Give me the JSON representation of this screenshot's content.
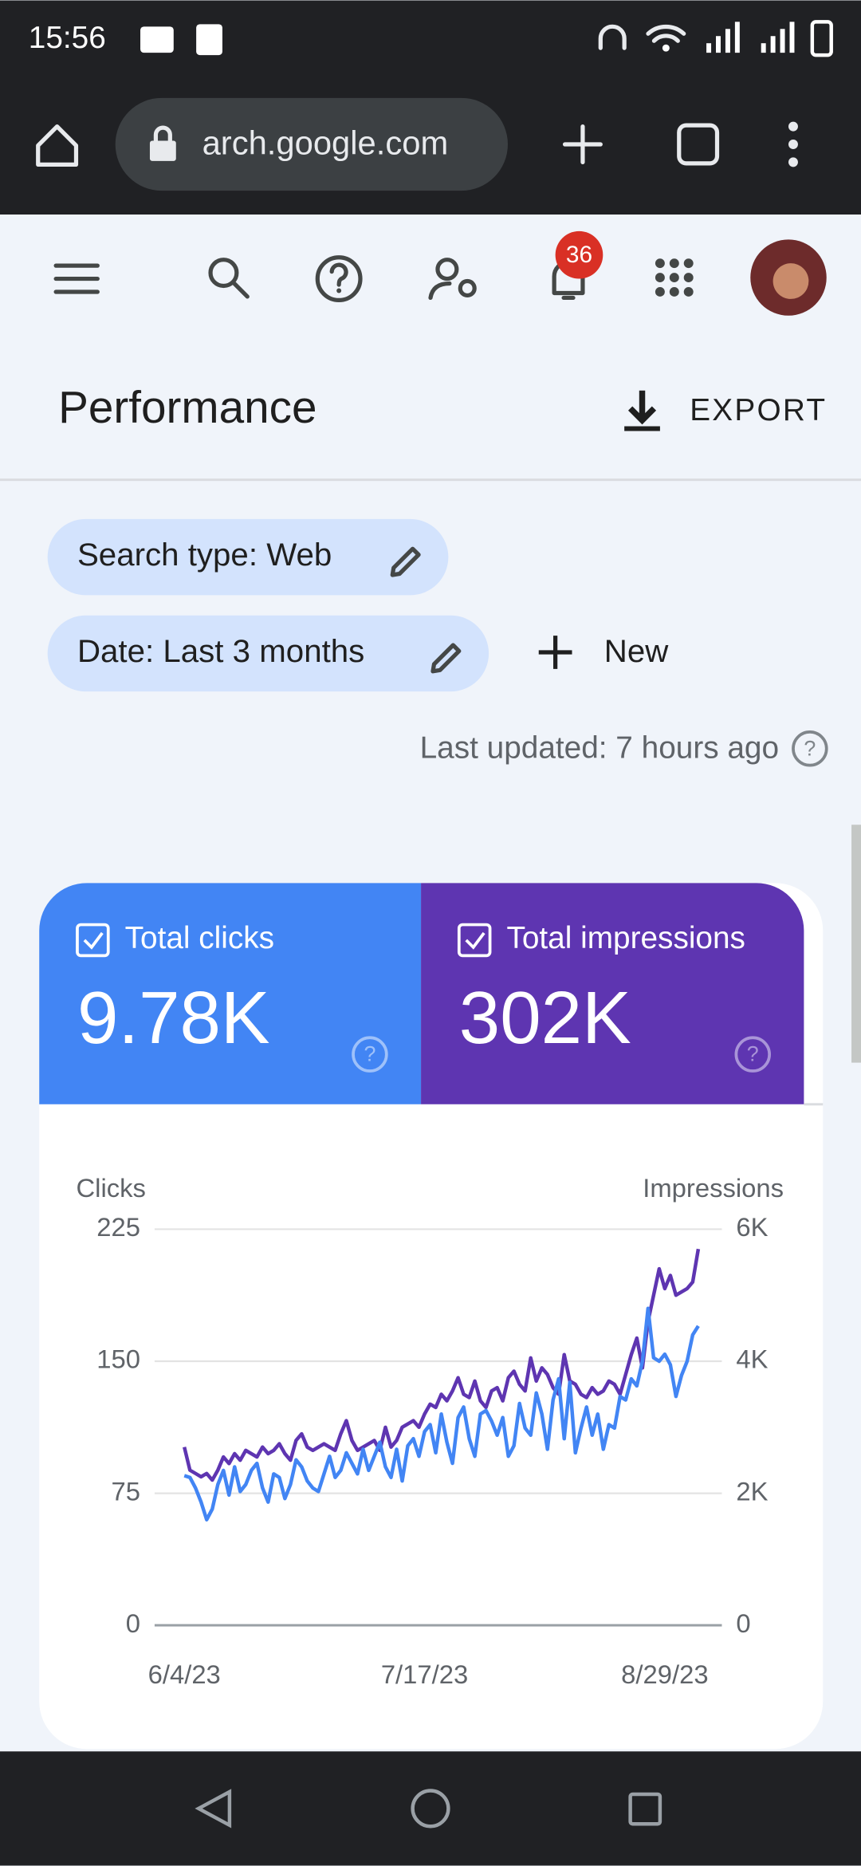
{
  "status_bar": {
    "time": "15:56"
  },
  "browser": {
    "url": "arch.google.com"
  },
  "toolbar": {
    "notification_count": "36"
  },
  "header": {
    "title": "Performance",
    "export": "EXPORT"
  },
  "filters": {
    "chips": [
      "Search type: Web",
      "Date: Last 3 months"
    ],
    "new": "New"
  },
  "last_updated": "Last updated: 7 hours ago",
  "metrics": [
    {
      "label": "Total clicks",
      "value": "9.78K"
    },
    {
      "label": "Total impressions",
      "value": "302K"
    }
  ],
  "chart_data": {
    "type": "line",
    "ylabel": "Clicks",
    "y2label": "Impressions",
    "categories": [
      "6/4/23",
      null,
      null,
      null,
      null,
      null,
      null,
      null,
      null,
      null,
      null,
      null,
      null,
      null,
      null,
      null,
      null,
      null,
      null,
      null,
      null,
      null,
      null,
      null,
      null,
      null,
      null,
      null,
      null,
      null,
      null,
      null,
      null,
      null,
      null,
      null,
      null,
      null,
      null,
      null,
      null,
      null,
      null,
      "7/17/23",
      null,
      null,
      null,
      null,
      null,
      null,
      null,
      null,
      null,
      null,
      null,
      null,
      null,
      null,
      null,
      null,
      null,
      null,
      null,
      null,
      null,
      null,
      null,
      null,
      null,
      null,
      null,
      null,
      null,
      null,
      null,
      null,
      null,
      null,
      null,
      null,
      null,
      null,
      null,
      null,
      null,
      null,
      "8/29/23",
      null,
      null,
      null,
      null,
      null,
      null
    ],
    "series": [
      {
        "name": "Total clicks",
        "color": "#4285f4",
        "axis": "y",
        "values": [
          85,
          84,
          78,
          70,
          60,
          66,
          80,
          88,
          74,
          90,
          76,
          80,
          88,
          92,
          78,
          70,
          86,
          84,
          72,
          80,
          94,
          90,
          82,
          78,
          76,
          86,
          96,
          84,
          88,
          98,
          92,
          86,
          100,
          88,
          96,
          104,
          90,
          84,
          100,
          82,
          102,
          106,
          96,
          110,
          114,
          98,
          120,
          104,
          92,
          118,
          124,
          106,
          96,
          120,
          122,
          116,
          108,
          118,
          96,
          102,
          126,
          112,
          108,
          132,
          120,
          100,
          128,
          140,
          106,
          138,
          98,
          112,
          124,
          108,
          120,
          100,
          114,
          112,
          130,
          128,
          140,
          136,
          150,
          180,
          152,
          150,
          154,
          148,
          130,
          142,
          150,
          165,
          170
        ]
      },
      {
        "name": "Total impressions",
        "color": "#5e35b1",
        "axis": "y2",
        "values": [
          2700,
          2350,
          2300,
          2250,
          2300,
          2200,
          2350,
          2550,
          2450,
          2600,
          2500,
          2650,
          2600,
          2550,
          2700,
          2600,
          2650,
          2750,
          2600,
          2500,
          2800,
          2900,
          2700,
          2650,
          2700,
          2750,
          2700,
          2650,
          2900,
          3100,
          2800,
          2650,
          2700,
          2750,
          2800,
          2650,
          3000,
          2700,
          2800,
          3000,
          3050,
          3100,
          3000,
          3200,
          3350,
          3300,
          3500,
          3400,
          3550,
          3750,
          3500,
          3450,
          3700,
          3400,
          3300,
          3550,
          3600,
          3400,
          3750,
          3850,
          3650,
          3550,
          4050,
          3700,
          3900,
          3800,
          3600,
          3500,
          4100,
          3700,
          3650,
          3500,
          3450,
          3600,
          3500,
          3550,
          3700,
          3650,
          3500,
          3800,
          4100,
          4350,
          3900,
          4600,
          5000,
          5400,
          5100,
          5300,
          5000,
          5050,
          5100,
          5200,
          5700
        ]
      }
    ],
    "ylim": [
      0,
      225
    ],
    "yticks": [
      0,
      75,
      150,
      225
    ],
    "y2lim": [
      0,
      6000
    ],
    "y2ticks": [
      0,
      {
        "value": 2000,
        "label": "2K"
      },
      {
        "value": 4000,
        "label": "4K"
      },
      {
        "value": 6000,
        "label": "6K"
      }
    ],
    "grid": true
  }
}
